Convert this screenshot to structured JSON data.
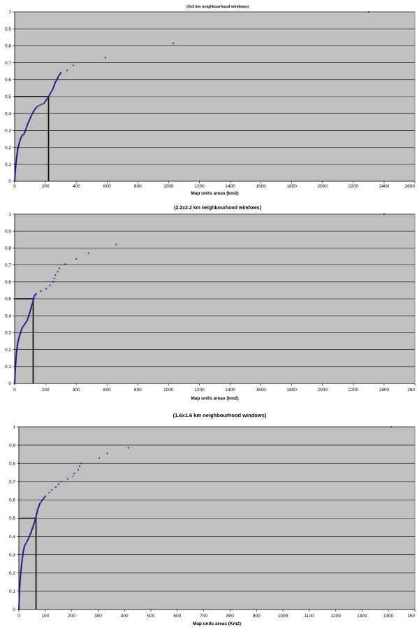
{
  "chart_data": [
    {
      "type": "scatter",
      "title": "(3x3 km neighbourhood windows)",
      "xlabel": "Map units areas (km2)",
      "ylabel": "",
      "xlim": [
        0,
        2600
      ],
      "ylim": [
        0,
        1
      ],
      "grid": true,
      "x_ticks": [
        "0",
        "200",
        "400",
        "600",
        "800",
        "1000",
        "1200",
        "1400",
        "1600",
        "1800",
        "2000",
        "2200",
        "2400",
        "2600"
      ],
      "y_ticks": [
        "0",
        "0,1",
        "0,2",
        "0,3",
        "0,4",
        "0,5",
        "0,6",
        "0,7",
        "0,8",
        "0,9",
        "1"
      ],
      "marker_color": "#1a1a8c",
      "median_marker": {
        "x": 220,
        "y": 0.5
      },
      "curve_anchors": [
        [
          0,
          0
        ],
        [
          2,
          0.03
        ],
        [
          5,
          0.07
        ],
        [
          9,
          0.11
        ],
        [
          14,
          0.15
        ],
        [
          20,
          0.19
        ],
        [
          28,
          0.22
        ],
        [
          38,
          0.25
        ],
        [
          48,
          0.27
        ],
        [
          62,
          0.28
        ],
        [
          70,
          0.3
        ],
        [
          78,
          0.32
        ],
        [
          85,
          0.34
        ],
        [
          95,
          0.36
        ],
        [
          105,
          0.38
        ],
        [
          115,
          0.4
        ],
        [
          128,
          0.42
        ],
        [
          145,
          0.44
        ],
        [
          165,
          0.45
        ],
        [
          190,
          0.46
        ],
        [
          205,
          0.48
        ],
        [
          222,
          0.5
        ],
        [
          232,
          0.52
        ],
        [
          245,
          0.54
        ],
        [
          255,
          0.56
        ],
        [
          262,
          0.58
        ],
        [
          275,
          0.6
        ],
        [
          285,
          0.62
        ],
        [
          300,
          0.64
        ]
      ],
      "points": [
        [
          340,
          0.655
        ],
        [
          380,
          0.685
        ],
        [
          590,
          0.73
        ],
        [
          1030,
          0.815
        ],
        [
          2300,
          1.0
        ]
      ]
    },
    {
      "type": "scatter",
      "title": "(2.2x2.2 km neighbourhood windows)",
      "xlabel": "Map units areas (km2)",
      "ylabel": "",
      "xlim": [
        0,
        2600
      ],
      "ylim": [
        0,
        1
      ],
      "grid": true,
      "x_ticks": [
        "0",
        "200",
        "400",
        "600",
        "800",
        "1000",
        "1200",
        "1400",
        "1600",
        "1800",
        "2000",
        "2200",
        "2400",
        "260"
      ],
      "y_ticks": [
        "0",
        "0,1",
        "0,2",
        "0,3",
        "0,4",
        "0,5",
        "0,6",
        "0,7",
        "0,8",
        "0,9",
        "1"
      ],
      "marker_color": "#1a1a8c",
      "median_marker": {
        "x": 120,
        "y": 0.5
      },
      "curve_anchors": [
        [
          0,
          0
        ],
        [
          2,
          0.04
        ],
        [
          4,
          0.08
        ],
        [
          7,
          0.12
        ],
        [
          10,
          0.16
        ],
        [
          14,
          0.2
        ],
        [
          20,
          0.24
        ],
        [
          28,
          0.27
        ],
        [
          38,
          0.3
        ],
        [
          50,
          0.33
        ],
        [
          65,
          0.35
        ],
        [
          80,
          0.37
        ],
        [
          92,
          0.4
        ],
        [
          102,
          0.43
        ],
        [
          110,
          0.46
        ],
        [
          118,
          0.48
        ],
        [
          122,
          0.5
        ],
        [
          130,
          0.52
        ],
        [
          140,
          0.53
        ]
      ],
      "points": [
        [
          170,
          0.545
        ],
        [
          205,
          0.56
        ],
        [
          230,
          0.58
        ],
        [
          250,
          0.6
        ],
        [
          258,
          0.62
        ],
        [
          265,
          0.64
        ],
        [
          280,
          0.66
        ],
        [
          290,
          0.68
        ],
        [
          330,
          0.705
        ],
        [
          400,
          0.735
        ],
        [
          480,
          0.77
        ],
        [
          660,
          0.82
        ],
        [
          2400,
          1.0
        ]
      ]
    },
    {
      "type": "scatter",
      "title": "(1.6x1.6 km neighbourhood windows)",
      "xlabel": "Map units areas (Km2)",
      "ylabel": "",
      "xlim": [
        0,
        1500
      ],
      "ylim": [
        0,
        1
      ],
      "grid": true,
      "x_ticks": [
        "0",
        "100",
        "200",
        "300",
        "400",
        "500",
        "600",
        "700",
        "800",
        "900",
        "1000",
        "1100",
        "1200",
        "1300",
        "1400",
        "150"
      ],
      "y_ticks": [
        "0",
        "0,1",
        "0,2",
        "0,3",
        "0,4",
        "0,5",
        "0,6",
        "0,7",
        "0,8",
        "0,9",
        "1"
      ],
      "marker_color": "#1a1a8c",
      "median_marker": {
        "x": 65,
        "y": 0.5
      },
      "curve_anchors": [
        [
          0,
          0
        ],
        [
          1,
          0.04
        ],
        [
          2,
          0.08
        ],
        [
          3,
          0.12
        ],
        [
          5,
          0.16
        ],
        [
          7,
          0.2
        ],
        [
          10,
          0.24
        ],
        [
          13,
          0.28
        ],
        [
          17,
          0.32
        ],
        [
          22,
          0.35
        ],
        [
          30,
          0.37
        ],
        [
          40,
          0.4
        ],
        [
          48,
          0.43
        ],
        [
          55,
          0.46
        ],
        [
          62,
          0.49
        ],
        [
          67,
          0.52
        ],
        [
          72,
          0.55
        ],
        [
          80,
          0.58
        ],
        [
          90,
          0.6
        ],
        [
          100,
          0.62
        ]
      ],
      "points": [
        [
          115,
          0.64
        ],
        [
          125,
          0.655
        ],
        [
          140,
          0.67
        ],
        [
          150,
          0.685
        ],
        [
          160,
          0.7
        ],
        [
          185,
          0.715
        ],
        [
          205,
          0.73
        ],
        [
          210,
          0.745
        ],
        [
          225,
          0.765
        ],
        [
          230,
          0.785
        ],
        [
          235,
          0.8
        ],
        [
          305,
          0.83
        ],
        [
          335,
          0.855
        ],
        [
          415,
          0.885
        ],
        [
          1410,
          1.0
        ]
      ]
    }
  ]
}
